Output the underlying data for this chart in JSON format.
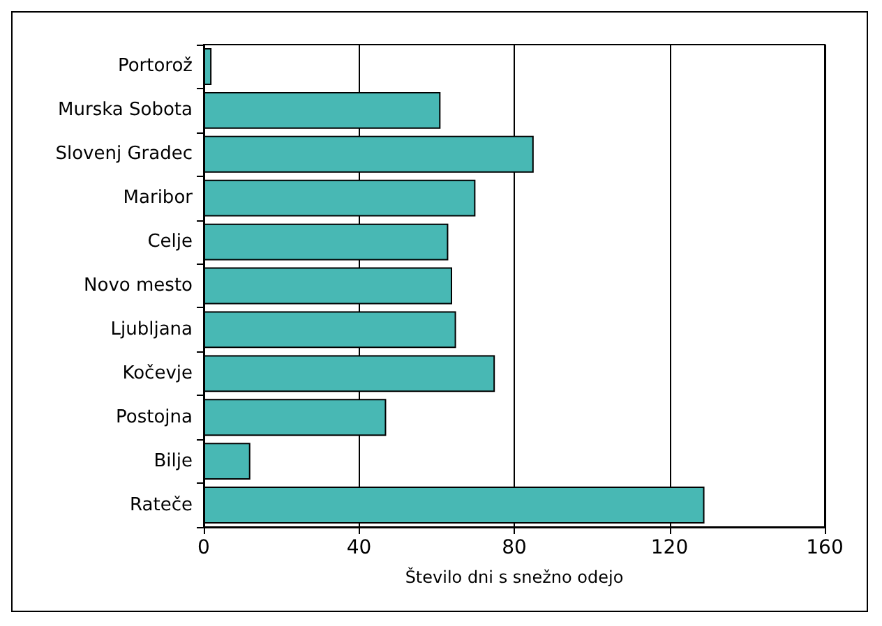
{
  "chart_data": {
    "type": "bar",
    "orientation": "horizontal",
    "xlabel": "Število dni s snežno odejo",
    "categories": [
      "Portorož",
      "Murska Sobota",
      "Slovenj Gradec",
      "Maribor",
      "Celje",
      "Novo mesto",
      "Ljubljana",
      "Kočevje",
      "Postojna",
      "Bilje",
      "Rateče"
    ],
    "values": [
      2,
      61,
      85,
      70,
      63,
      64,
      65,
      75,
      47,
      12,
      129
    ],
    "color": "#48b8b4",
    "xlim": [
      0,
      160
    ],
    "xticks": [
      0,
      40,
      80,
      120,
      160
    ],
    "grid": "x"
  }
}
